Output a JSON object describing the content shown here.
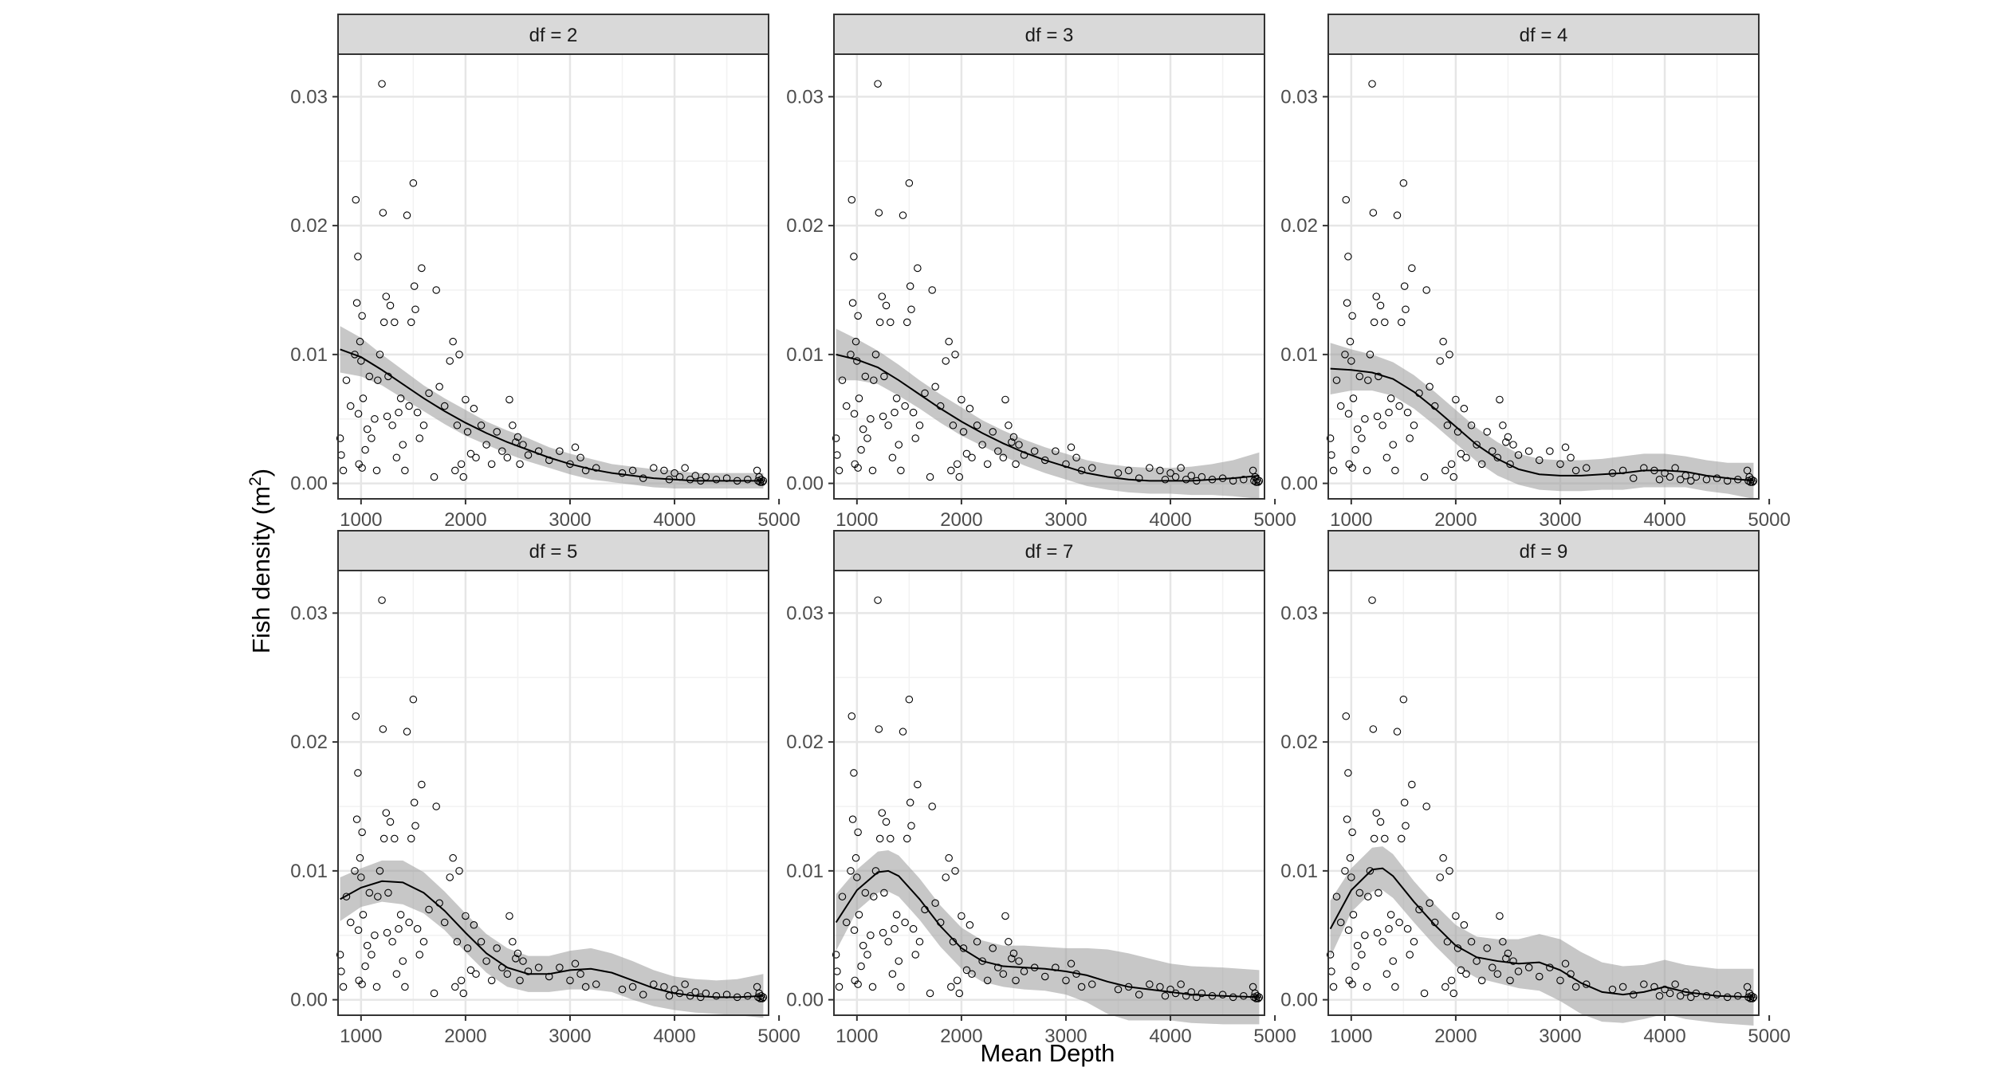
{
  "chart_data": {
    "type": "scatter",
    "facet_prefix": "df = ",
    "xlabel": "Mean Depth",
    "ylabel_main": "Fish density (m",
    "ylabel_sup": "2",
    "ylabel_close": ")",
    "xlim": [
      780,
      4900
    ],
    "ylim": [
      -0.0012,
      0.0333
    ],
    "x_ticks": [
      1000,
      2000,
      3000,
      4000,
      5000
    ],
    "y_ticks": [
      0.0,
      0.01,
      0.02,
      0.03
    ],
    "y_tick_labels": [
      "0.00",
      "0.01",
      "0.02",
      "0.03"
    ],
    "grid": true,
    "legend": "none",
    "points": [
      [
        800,
        0.0035
      ],
      [
        810,
        0.0022
      ],
      [
        830,
        0.001
      ],
      [
        860,
        0.008
      ],
      [
        900,
        0.006
      ],
      [
        940,
        0.01
      ],
      [
        950,
        0.022
      ],
      [
        960,
        0.014
      ],
      [
        970,
        0.0176
      ],
      [
        975,
        0.0054
      ],
      [
        980,
        0.0015
      ],
      [
        990,
        0.011
      ],
      [
        1000,
        0.0095
      ],
      [
        1010,
        0.013
      ],
      [
        1010,
        0.0012
      ],
      [
        1020,
        0.0066
      ],
      [
        1040,
        0.0026
      ],
      [
        1060,
        0.0042
      ],
      [
        1080,
        0.0083
      ],
      [
        1100,
        0.0035
      ],
      [
        1130,
        0.005
      ],
      [
        1150,
        0.001
      ],
      [
        1160,
        0.008
      ],
      [
        1180,
        0.01
      ],
      [
        1200,
        0.031
      ],
      [
        1210,
        0.021
      ],
      [
        1220,
        0.0125
      ],
      [
        1240,
        0.0145
      ],
      [
        1250,
        0.0052
      ],
      [
        1260,
        0.0083
      ],
      [
        1280,
        0.0138
      ],
      [
        1300,
        0.0045
      ],
      [
        1320,
        0.0125
      ],
      [
        1340,
        0.002
      ],
      [
        1360,
        0.0055
      ],
      [
        1380,
        0.0066
      ],
      [
        1400,
        0.003
      ],
      [
        1420,
        0.001
      ],
      [
        1440,
        0.0208
      ],
      [
        1460,
        0.006
      ],
      [
        1480,
        0.0125
      ],
      [
        1500,
        0.0233
      ],
      [
        1510,
        0.0153
      ],
      [
        1520,
        0.0135
      ],
      [
        1540,
        0.0055
      ],
      [
        1560,
        0.0035
      ],
      [
        1580,
        0.0167
      ],
      [
        1600,
        0.0045
      ],
      [
        1650,
        0.007
      ],
      [
        1700,
        0.0005
      ],
      [
        1720,
        0.015
      ],
      [
        1750,
        0.0075
      ],
      [
        1800,
        0.006
      ],
      [
        1850,
        0.0095
      ],
      [
        1880,
        0.011
      ],
      [
        1900,
        0.001
      ],
      [
        1920,
        0.0045
      ],
      [
        1940,
        0.01
      ],
      [
        1960,
        0.0015
      ],
      [
        1980,
        0.0005
      ],
      [
        2000,
        0.0065
      ],
      [
        2020,
        0.004
      ],
      [
        2050,
        0.0023
      ],
      [
        2080,
        0.0058
      ],
      [
        2100,
        0.002
      ],
      [
        2150,
        0.0045
      ],
      [
        2200,
        0.003
      ],
      [
        2250,
        0.0015
      ],
      [
        2300,
        0.004
      ],
      [
        2350,
        0.0025
      ],
      [
        2400,
        0.002
      ],
      [
        2420,
        0.0065
      ],
      [
        2450,
        0.0045
      ],
      [
        2480,
        0.0032
      ],
      [
        2500,
        0.0036
      ],
      [
        2520,
        0.0015
      ],
      [
        2550,
        0.003
      ],
      [
        2600,
        0.0022
      ],
      [
        2700,
        0.0025
      ],
      [
        2800,
        0.0018
      ],
      [
        2900,
        0.0025
      ],
      [
        3000,
        0.0015
      ],
      [
        3050,
        0.0028
      ],
      [
        3100,
        0.002
      ],
      [
        3150,
        0.001
      ],
      [
        3250,
        0.0012
      ],
      [
        3500,
        0.0008
      ],
      [
        3600,
        0.001
      ],
      [
        3700,
        0.0004
      ],
      [
        3800,
        0.0012
      ],
      [
        3900,
        0.001
      ],
      [
        3950,
        0.0003
      ],
      [
        4000,
        0.0008
      ],
      [
        4050,
        0.0005
      ],
      [
        4100,
        0.0012
      ],
      [
        4150,
        0.0003
      ],
      [
        4200,
        0.0006
      ],
      [
        4250,
        0.0002
      ],
      [
        4300,
        0.0005
      ],
      [
        4400,
        0.0003
      ],
      [
        4500,
        0.0004
      ],
      [
        4600,
        0.0002
      ],
      [
        4700,
        0.0003
      ],
      [
        4790,
        0.001
      ],
      [
        4800,
        0.0002
      ],
      [
        4810,
        0.0005
      ],
      [
        4820,
        0.0001
      ],
      [
        4830,
        0.0003
      ],
      [
        4840,
        0.0001
      ],
      [
        4850,
        0.0002
      ]
    ],
    "facets": [
      {
        "df": "2",
        "curve": [
          [
            800,
            0.0104
          ],
          [
            1000,
            0.0098
          ],
          [
            1200,
            0.0088
          ],
          [
            1400,
            0.0077
          ],
          [
            1600,
            0.0066
          ],
          [
            1800,
            0.0056
          ],
          [
            2000,
            0.0047
          ],
          [
            2200,
            0.0039
          ],
          [
            2400,
            0.0032
          ],
          [
            2600,
            0.0026
          ],
          [
            2800,
            0.002
          ],
          [
            3000,
            0.0015
          ],
          [
            3200,
            0.0011
          ],
          [
            3400,
            0.0008
          ],
          [
            3600,
            0.0006
          ],
          [
            3800,
            0.0004
          ],
          [
            4000,
            0.0003
          ],
          [
            4200,
            0.0002
          ],
          [
            4400,
            0.0002
          ],
          [
            4600,
            0.0002
          ],
          [
            4850,
            0.0002
          ]
        ],
        "band": [
          0.0018,
          0.0015,
          0.0012,
          0.0011,
          0.001,
          0.001,
          0.001,
          0.0009,
          0.0009,
          0.0009,
          0.0008,
          0.0008,
          0.0008,
          0.0007,
          0.0007,
          0.0007,
          0.0007,
          0.0006,
          0.0006,
          0.0006,
          0.0006
        ]
      },
      {
        "df": "3",
        "curve": [
          [
            800,
            0.01
          ],
          [
            1000,
            0.0096
          ],
          [
            1200,
            0.009
          ],
          [
            1400,
            0.008
          ],
          [
            1600,
            0.0069
          ],
          [
            1800,
            0.0058
          ],
          [
            2000,
            0.0048
          ],
          [
            2200,
            0.0039
          ],
          [
            2400,
            0.0031
          ],
          [
            2600,
            0.0024
          ],
          [
            2800,
            0.0018
          ],
          [
            3000,
            0.0013
          ],
          [
            3200,
            0.0008
          ],
          [
            3400,
            0.0005
          ],
          [
            3600,
            0.0003
          ],
          [
            3800,
            0.0002
          ],
          [
            4000,
            0.0002
          ],
          [
            4200,
            0.0002
          ],
          [
            4400,
            0.0003
          ],
          [
            4600,
            0.0004
          ],
          [
            4850,
            0.0006
          ]
        ],
        "band": [
          0.002,
          0.0016,
          0.0013,
          0.0012,
          0.0011,
          0.0011,
          0.0011,
          0.001,
          0.001,
          0.001,
          0.001,
          0.001,
          0.001,
          0.001,
          0.001,
          0.001,
          0.001,
          0.0011,
          0.0012,
          0.0014,
          0.0018
        ]
      },
      {
        "df": "4",
        "curve": [
          [
            800,
            0.0089
          ],
          [
            1000,
            0.0088
          ],
          [
            1200,
            0.0086
          ],
          [
            1400,
            0.0081
          ],
          [
            1600,
            0.0071
          ],
          [
            1800,
            0.0058
          ],
          [
            2000,
            0.0044
          ],
          [
            2200,
            0.003
          ],
          [
            2400,
            0.0019
          ],
          [
            2600,
            0.0011
          ],
          [
            2800,
            0.0007
          ],
          [
            3000,
            0.0006
          ],
          [
            3200,
            0.0006
          ],
          [
            3400,
            0.0007
          ],
          [
            3600,
            0.0008
          ],
          [
            3800,
            0.001
          ],
          [
            4000,
            0.001
          ],
          [
            4200,
            0.0009
          ],
          [
            4400,
            0.0006
          ],
          [
            4600,
            0.0004
          ],
          [
            4850,
            0.0002
          ]
        ],
        "band": [
          0.002,
          0.0016,
          0.0014,
          0.0013,
          0.0013,
          0.0013,
          0.0013,
          0.0013,
          0.0013,
          0.0012,
          0.0012,
          0.0012,
          0.0012,
          0.0012,
          0.0013,
          0.0013,
          0.0013,
          0.0012,
          0.0012,
          0.0012,
          0.0014
        ]
      },
      {
        "df": "5",
        "curve": [
          [
            800,
            0.0078
          ],
          [
            1000,
            0.0087
          ],
          [
            1200,
            0.0092
          ],
          [
            1400,
            0.0091
          ],
          [
            1600,
            0.0083
          ],
          [
            1800,
            0.0069
          ],
          [
            2000,
            0.0052
          ],
          [
            2200,
            0.0036
          ],
          [
            2400,
            0.0025
          ],
          [
            2600,
            0.002
          ],
          [
            2800,
            0.002
          ],
          [
            3000,
            0.0023
          ],
          [
            3200,
            0.0024
          ],
          [
            3400,
            0.0021
          ],
          [
            3600,
            0.0015
          ],
          [
            3800,
            0.0009
          ],
          [
            4000,
            0.0005
          ],
          [
            4200,
            0.0003
          ],
          [
            4400,
            0.0002
          ],
          [
            4600,
            0.0002
          ],
          [
            4850,
            0.0003
          ]
        ],
        "band": [
          0.0017,
          0.0015,
          0.0016,
          0.0017,
          0.0016,
          0.0015,
          0.0015,
          0.0015,
          0.0015,
          0.0014,
          0.0014,
          0.0015,
          0.0016,
          0.0015,
          0.0015,
          0.0014,
          0.0013,
          0.0013,
          0.0013,
          0.0014,
          0.0017
        ]
      },
      {
        "df": "7",
        "curve": [
          [
            800,
            0.006
          ],
          [
            1000,
            0.0085
          ],
          [
            1200,
            0.0099
          ],
          [
            1300,
            0.01
          ],
          [
            1400,
            0.0096
          ],
          [
            1600,
            0.0078
          ],
          [
            1800,
            0.0057
          ],
          [
            2000,
            0.004
          ],
          [
            2200,
            0.003
          ],
          [
            2400,
            0.0026
          ],
          [
            2600,
            0.0025
          ],
          [
            2800,
            0.0024
          ],
          [
            3000,
            0.0022
          ],
          [
            3200,
            0.0019
          ],
          [
            3400,
            0.0014
          ],
          [
            3600,
            0.001
          ],
          [
            3800,
            0.0008
          ],
          [
            4000,
            0.0006
          ],
          [
            4200,
            0.0004
          ],
          [
            4500,
            0.0003
          ],
          [
            4850,
            0.0002
          ]
        ],
        "band": [
          0.0022,
          0.0016,
          0.0016,
          0.0016,
          0.0016,
          0.0016,
          0.0016,
          0.0016,
          0.0016,
          0.0016,
          0.0017,
          0.0017,
          0.0018,
          0.0021,
          0.0025,
          0.0026,
          0.0024,
          0.0022,
          0.0022,
          0.0022,
          0.0021
        ]
      },
      {
        "df": "9",
        "curve": [
          [
            800,
            0.0055
          ],
          [
            1000,
            0.0085
          ],
          [
            1200,
            0.0101
          ],
          [
            1300,
            0.0102
          ],
          [
            1400,
            0.0096
          ],
          [
            1600,
            0.0076
          ],
          [
            1800,
            0.0058
          ],
          [
            2000,
            0.0042
          ],
          [
            2200,
            0.0033
          ],
          [
            2400,
            0.003
          ],
          [
            2600,
            0.0028
          ],
          [
            2800,
            0.0029
          ],
          [
            3000,
            0.0023
          ],
          [
            3200,
            0.0013
          ],
          [
            3400,
            0.0006
          ],
          [
            3600,
            0.0004
          ],
          [
            3800,
            0.0006
          ],
          [
            4000,
            0.001
          ],
          [
            4200,
            0.0006
          ],
          [
            4500,
            0.0003
          ],
          [
            4850,
            0.0002
          ]
        ],
        "band": [
          0.0022,
          0.0017,
          0.0017,
          0.0017,
          0.0017,
          0.0016,
          0.0016,
          0.0016,
          0.0016,
          0.0017,
          0.0019,
          0.0022,
          0.0024,
          0.0024,
          0.0023,
          0.0022,
          0.0021,
          0.0021,
          0.0021,
          0.0021,
          0.0022
        ]
      }
    ]
  }
}
